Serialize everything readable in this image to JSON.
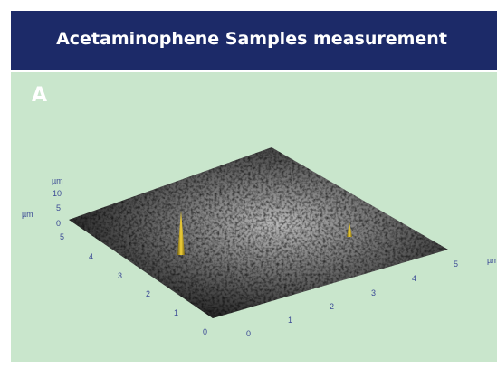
{
  "header": {
    "title": "Acetaminophene Samples measurement"
  },
  "panel": {
    "label": "A",
    "z_axis": {
      "unit": "µm",
      "ticks": [
        "10",
        "5",
        "0"
      ]
    },
    "y_axis": {
      "unit": "µm",
      "ticks": [
        "5",
        "4",
        "3",
        "2",
        "1",
        "0"
      ]
    },
    "x_axis": {
      "unit": "µm",
      "ticks": [
        "0",
        "1",
        "2",
        "3",
        "4",
        "5"
      ]
    }
  }
}
